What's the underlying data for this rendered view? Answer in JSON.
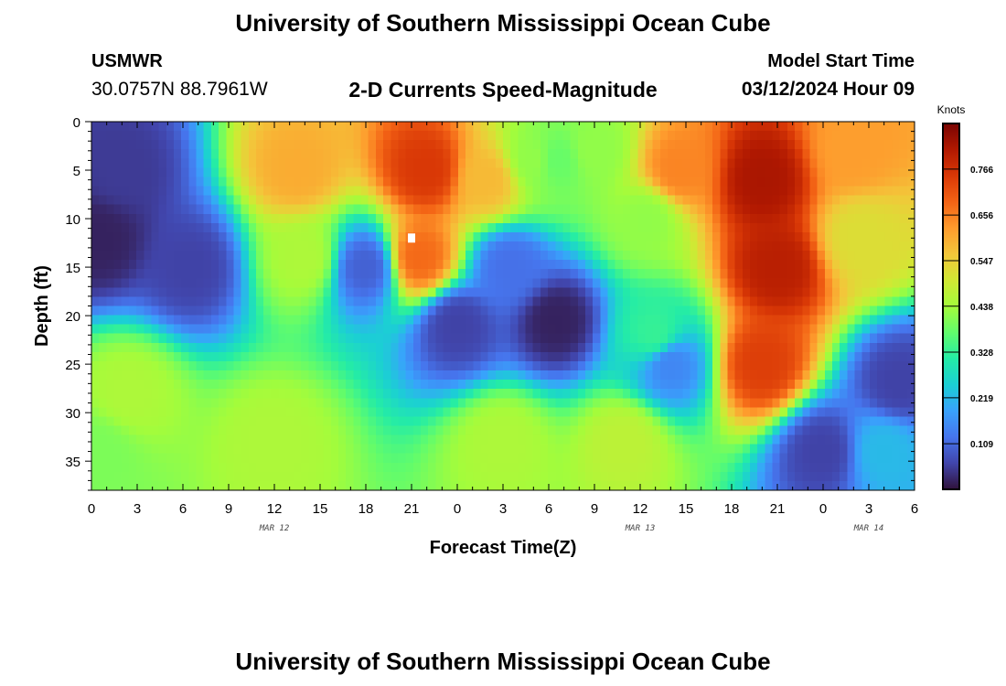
{
  "header": {
    "title": "University of Southern Mississippi Ocean Cube",
    "station": "USMWR",
    "coordinates": "30.0757N  88.7961W",
    "subtitle": "2-D Currents Speed-Magnitude",
    "model_start_label": "Model Start Time",
    "model_start_value": "03/12/2024 Hour 09"
  },
  "footer": {
    "title": "University of Southern Mississippi Ocean Cube"
  },
  "chart_data": {
    "type": "heatmap",
    "title": "2-D Currents Speed-Magnitude",
    "xlabel": "Forecast Time(Z)",
    "ylabel": "Depth (ft)",
    "x_range_hours": [
      0,
      54
    ],
    "y_range_ft": [
      0,
      38
    ],
    "y_inverted": true,
    "x_tick_labels": [
      "0",
      "3",
      "6",
      "9",
      "12",
      "15",
      "18",
      "21",
      "0",
      "3",
      "6",
      "9",
      "12",
      "15",
      "18",
      "21",
      "0",
      "3",
      "6"
    ],
    "y_ticks": [
      0,
      5,
      10,
      15,
      20,
      25,
      30,
      35
    ],
    "date_labels": [
      {
        "text": "MAR 12",
        "hour": 12
      },
      {
        "text": "MAR 13",
        "hour": 36
      },
      {
        "text": "MAR 14",
        "hour": 51
      }
    ],
    "colorbar": {
      "unit": "Knots",
      "min": 0.0,
      "max": 0.875,
      "tick_values": [
        0.109,
        0.219,
        0.328,
        0.438,
        0.547,
        0.656,
        0.766
      ],
      "tick_labels": [
        "0.109",
        "0.219",
        "0.328",
        "0.438",
        "0.547",
        "0.656",
        "0.766"
      ],
      "colors": [
        "#30123b",
        "#4145ab",
        "#4675ed",
        "#39a2fc",
        "#1bcfd4",
        "#24eca6",
        "#61fc6c",
        "#a4fc3b",
        "#d1e834",
        "#f3c63a",
        "#fe9b2d",
        "#f36315",
        "#d93806",
        "#b11901",
        "#7a0402"
      ]
    },
    "features": [
      {
        "t": 2,
        "d": 5,
        "v": 0.05
      },
      {
        "t": 0.5,
        "d": 12,
        "v": 0.02
      },
      {
        "t": 6.5,
        "d": 15,
        "v": 0.06
      },
      {
        "t": 2.5,
        "d": 28,
        "v": 0.45
      },
      {
        "t": 0.5,
        "d": 34,
        "v": 0.4
      },
      {
        "t": 12,
        "d": 33,
        "v": 0.45
      },
      {
        "t": 13.5,
        "d": 5,
        "v": 0.6
      },
      {
        "t": 14,
        "d": 14,
        "v": 0.45
      },
      {
        "t": 18,
        "d": 15,
        "v": 0.1
      },
      {
        "t": 22,
        "d": 5,
        "v": 0.75
      },
      {
        "t": 21.5,
        "d": 14,
        "v": 0.68
      },
      {
        "t": 26,
        "d": 6,
        "v": 0.58
      },
      {
        "t": 29,
        "d": 4,
        "v": 0.42
      },
      {
        "t": 30.5,
        "d": 4,
        "v": 0.38
      },
      {
        "t": 33,
        "d": 3,
        "v": 0.42
      },
      {
        "t": 24,
        "d": 21,
        "v": 0.06
      },
      {
        "t": 30.5,
        "d": 20.5,
        "v": 0.02
      },
      {
        "t": 27.5,
        "d": 15,
        "v": 0.12
      },
      {
        "t": 27,
        "d": 33,
        "v": 0.45
      },
      {
        "t": 35,
        "d": 33,
        "v": 0.47
      },
      {
        "t": 36.5,
        "d": 10,
        "v": 0.42
      },
      {
        "t": 38.5,
        "d": 5,
        "v": 0.65
      },
      {
        "t": 37,
        "d": 22,
        "v": 0.33
      },
      {
        "t": 38,
        "d": 25,
        "v": 0.15
      },
      {
        "t": 44,
        "d": 6,
        "v": 0.82
      },
      {
        "t": 45,
        "d": 15,
        "v": 0.8
      },
      {
        "t": 44,
        "d": 25,
        "v": 0.74
      },
      {
        "t": 50,
        "d": 3,
        "v": 0.62
      },
      {
        "t": 50.5,
        "d": 12,
        "v": 0.52
      },
      {
        "t": 53,
        "d": 27,
        "v": 0.06
      },
      {
        "t": 48,
        "d": 34,
        "v": 0.06
      },
      {
        "t": 52,
        "d": 34,
        "v": 0.22
      }
    ]
  }
}
